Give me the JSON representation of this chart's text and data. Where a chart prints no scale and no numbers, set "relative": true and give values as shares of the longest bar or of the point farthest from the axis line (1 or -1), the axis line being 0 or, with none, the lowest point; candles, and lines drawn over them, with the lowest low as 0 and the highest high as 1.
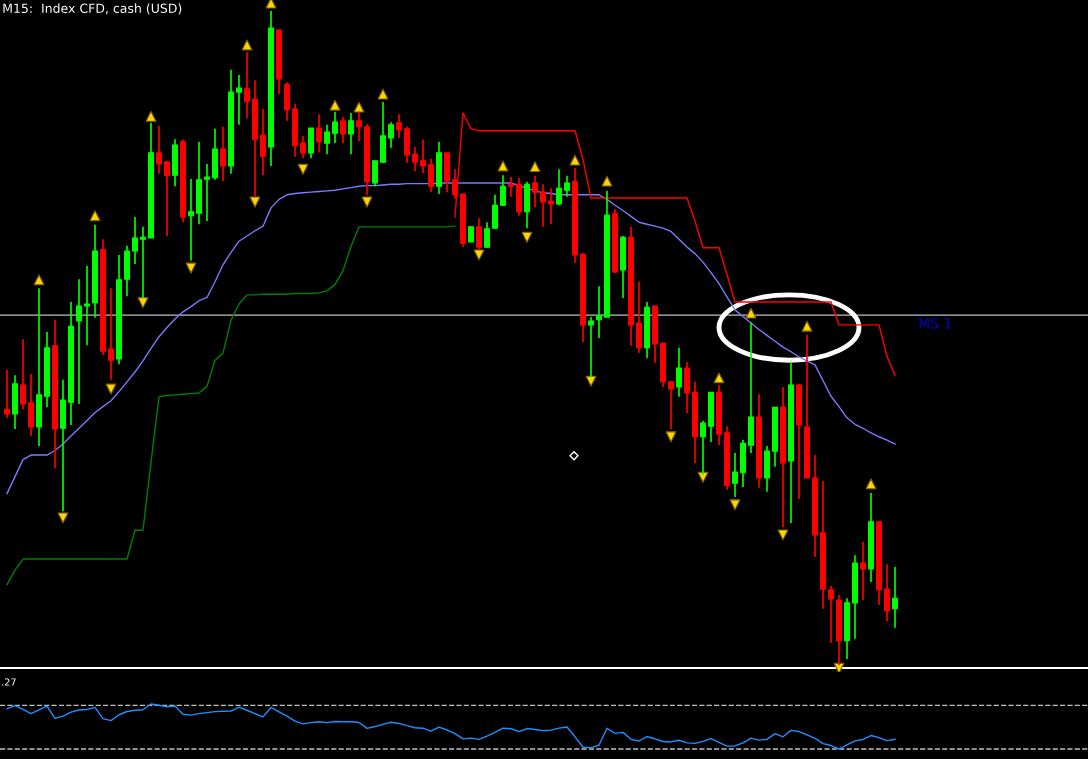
{
  "chart_data": [
    {
      "type": "candlestick",
      "title": "M15:  Index CFD, cash (USD)",
      "relative": true,
      "legend": false,
      "categories": [
        null,
        null,
        null,
        null,
        null,
        null,
        null,
        null,
        null,
        null,
        null,
        null,
        null,
        null,
        null,
        null,
        null,
        null,
        null,
        null,
        null,
        null,
        null,
        null,
        null,
        null,
        null,
        null,
        null,
        null,
        null,
        null,
        null,
        null,
        null,
        null,
        null,
        null,
        null,
        null,
        null,
        null,
        null,
        null,
        null,
        null,
        null,
        null,
        null,
        null,
        null,
        null,
        null,
        null,
        null,
        null,
        null,
        null,
        null,
        null,
        null,
        null,
        null,
        null,
        null,
        null,
        null,
        null,
        null,
        null,
        null,
        null,
        null,
        null,
        null,
        null,
        null,
        null,
        null,
        null,
        null,
        null,
        null,
        null,
        null,
        null,
        null,
        null,
        null,
        null,
        null,
        null,
        null,
        null,
        null,
        null,
        null,
        null,
        null,
        null,
        null,
        null,
        null,
        null,
        null,
        null,
        null,
        null,
        null,
        null,
        null,
        null
      ],
      "ohlc": [
        [
          0.391,
          0.451,
          0.378,
          0.384
        ],
        [
          0.384,
          0.443,
          0.361,
          0.43
        ],
        [
          0.428,
          0.498,
          0.391,
          0.399
        ],
        [
          0.401,
          0.445,
          0.35,
          0.364
        ],
        [
          0.364,
          0.576,
          0.335,
          0.413
        ],
        [
          0.411,
          0.509,
          0.394,
          0.485
        ],
        [
          0.488,
          0.528,
          0.301,
          0.361
        ],
        [
          0.362,
          0.436,
          0.235,
          0.405
        ],
        [
          0.402,
          0.555,
          0.367,
          0.518
        ],
        [
          0.526,
          0.59,
          0.399,
          0.549
        ],
        [
          0.549,
          0.61,
          0.489,
          0.552
        ],
        [
          0.554,
          0.673,
          0.531,
          0.633
        ],
        [
          0.635,
          0.651,
          0.474,
          0.48
        ],
        [
          0.483,
          0.576,
          0.436,
          0.466
        ],
        [
          0.468,
          0.627,
          0.46,
          0.589
        ],
        [
          0.59,
          0.641,
          0.564,
          0.633
        ],
        [
          0.633,
          0.685,
          0.613,
          0.653
        ],
        [
          0.651,
          0.67,
          0.561,
          0.654
        ],
        [
          0.653,
          0.829,
          0.653,
          0.783
        ],
        [
          0.783,
          0.824,
          0.751,
          0.766
        ],
        [
          0.769,
          0.771,
          0.656,
          0.748
        ],
        [
          0.749,
          0.804,
          0.732,
          0.795
        ],
        [
          0.8,
          0.803,
          0.677,
          0.685
        ],
        [
          0.687,
          0.743,
          0.618,
          0.693
        ],
        [
          0.691,
          0.8,
          0.674,
          0.742
        ],
        [
          0.743,
          0.766,
          0.679,
          0.746
        ],
        [
          0.745,
          0.82,
          0.742,
          0.789
        ],
        [
          0.789,
          0.823,
          0.74,
          0.763
        ],
        [
          0.763,
          0.91,
          0.751,
          0.876
        ],
        [
          0.876,
          0.902,
          0.826,
          0.882
        ],
        [
          0.881,
          0.937,
          0.836,
          0.862
        ],
        [
          0.865,
          0.894,
          0.717,
          0.804
        ],
        [
          0.81,
          0.85,
          0.749,
          0.778
        ],
        [
          0.792,
          1.0,
          0.763,
          0.974
        ],
        [
          0.971,
          0.971,
          0.873,
          0.896
        ],
        [
          0.888,
          0.891,
          0.832,
          0.849
        ],
        [
          0.85,
          0.858,
          0.777,
          0.794
        ],
        [
          0.798,
          0.809,
          0.775,
          0.783
        ],
        [
          0.783,
          0.821,
          0.775,
          0.821
        ],
        [
          0.821,
          0.842,
          0.784,
          0.8
        ],
        [
          0.798,
          0.826,
          0.781,
          0.815
        ],
        [
          0.813,
          0.846,
          0.798,
          0.83
        ],
        [
          0.832,
          0.838,
          0.798,
          0.812
        ],
        [
          0.812,
          0.844,
          0.781,
          0.832
        ],
        [
          0.832,
          0.846,
          0.801,
          0.823
        ],
        [
          0.823,
          0.827,
          0.719,
          0.739
        ],
        [
          0.737,
          0.771,
          0.732,
          0.771
        ],
        [
          0.769,
          0.861,
          0.768,
          0.809
        ],
        [
          0.806,
          0.83,
          0.791,
          0.826
        ],
        [
          0.829,
          0.842,
          0.806,
          0.818
        ],
        [
          0.82,
          0.823,
          0.768,
          0.78
        ],
        [
          0.781,
          0.792,
          0.755,
          0.769
        ],
        [
          0.771,
          0.803,
          0.752,
          0.763
        ],
        [
          0.765,
          0.774,
          0.723,
          0.732
        ],
        [
          0.732,
          0.8,
          0.72,
          0.783
        ],
        [
          0.783,
          0.783,
          0.723,
          0.74
        ],
        [
          0.742,
          0.758,
          0.713,
          0.719
        ],
        [
          0.72,
          0.72,
          0.639,
          0.645
        ],
        [
          0.647,
          0.67,
          0.647,
          0.67
        ],
        [
          0.67,
          0.683,
          0.635,
          0.639
        ],
        [
          0.639,
          0.677,
          0.638,
          0.667
        ],
        [
          0.668,
          0.719,
          0.667,
          0.703
        ],
        [
          0.703,
          0.749,
          0.702,
          0.732
        ],
        [
          0.735,
          0.746,
          0.716,
          0.732
        ],
        [
          0.735,
          0.745,
          0.687,
          0.693
        ],
        [
          0.693,
          0.739,
          0.668,
          0.735
        ],
        [
          0.737,
          0.748,
          0.7,
          0.723
        ],
        [
          0.723,
          0.735,
          0.67,
          0.708
        ],
        [
          0.709,
          0.729,
          0.674,
          0.705
        ],
        [
          0.705,
          0.758,
          0.703,
          0.729
        ],
        [
          0.726,
          0.748,
          0.716,
          0.737
        ],
        [
          0.739,
          0.76,
          0.615,
          0.627
        ],
        [
          0.628,
          0.63,
          0.494,
          0.52
        ],
        [
          0.52,
          0.532,
          0.44,
          0.526
        ],
        [
          0.528,
          0.579,
          0.5,
          0.534
        ],
        [
          0.532,
          0.725,
          0.532,
          0.688
        ],
        [
          0.69,
          0.697,
          0.599,
          0.601
        ],
        [
          0.604,
          0.656,
          0.561,
          0.654
        ],
        [
          0.654,
          0.67,
          0.488,
          0.52
        ],
        [
          0.523,
          0.586,
          0.477,
          0.485
        ],
        [
          0.485,
          0.555,
          0.469,
          0.547
        ],
        [
          0.549,
          0.549,
          0.462,
          0.491
        ],
        [
          0.492,
          0.492,
          0.425,
          0.433
        ],
        [
          0.433,
          0.433,
          0.361,
          0.422
        ],
        [
          0.425,
          0.485,
          0.41,
          0.454
        ],
        [
          0.454,
          0.463,
          0.385,
          0.416
        ],
        [
          0.417,
          0.433,
          0.309,
          0.349
        ],
        [
          0.349,
          0.373,
          0.291,
          0.37
        ],
        [
          0.365,
          0.417,
          0.341,
          0.417
        ],
        [
          0.417,
          0.428,
          0.336,
          0.353
        ],
        [
          0.355,
          0.365,
          0.268,
          0.275
        ],
        [
          0.278,
          0.324,
          0.257,
          0.295
        ],
        [
          0.294,
          0.344,
          0.272,
          0.339
        ],
        [
          0.336,
          0.524,
          0.324,
          0.379
        ],
        [
          0.379,
          0.414,
          0.271,
          0.286
        ],
        [
          0.286,
          0.335,
          0.265,
          0.327
        ],
        [
          0.327,
          0.394,
          0.303,
          0.394
        ],
        [
          0.394,
          0.425,
          0.211,
          0.309
        ],
        [
          0.312,
          0.463,
          0.217,
          0.428
        ],
        [
          0.428,
          0.43,
          0.254,
          0.367
        ],
        [
          0.364,
          0.505,
          0.286,
          0.286
        ],
        [
          0.286,
          0.321,
          0.165,
          0.199
        ],
        [
          0.202,
          0.281,
          0.086,
          0.116
        ],
        [
          0.115,
          0.121,
          0.034,
          0.101
        ],
        [
          0.099,
          0.107,
          0.0,
          0.037
        ],
        [
          0.037,
          0.102,
          0.009,
          0.095
        ],
        [
          0.095,
          0.168,
          0.04,
          0.156
        ],
        [
          0.156,
          0.188,
          0.099,
          0.147
        ],
        [
          0.147,
          0.263,
          0.127,
          0.219
        ],
        [
          0.219,
          0.22,
          0.092,
          0.115
        ],
        [
          0.116,
          0.154,
          0.067,
          0.083
        ],
        [
          0.086,
          0.15,
          0.057,
          0.102
        ]
      ],
      "colors": [
        "#ff0000",
        "#00ff00",
        "#ff0000",
        "#ff0000",
        "#00ff00",
        "#00ff00",
        "#ff0000",
        "#00ff00",
        "#00ff00",
        "#00ff00",
        "#00ff00",
        "#00ff00",
        "#ff0000",
        "#ff0000",
        "#00ff00",
        "#00ff00",
        "#00ff00",
        "#00ff00",
        "#00ff00",
        "#ff0000",
        "#ff0000",
        "#00ff00",
        "#ff0000",
        "#00ff00",
        "#00ff00",
        "#00ff00",
        "#00ff00",
        "#ff0000",
        "#00ff00",
        "#00ff00",
        "#ff0000",
        "#ff0000",
        "#ff0000",
        "#00ff00",
        "#ff0000",
        "#ff0000",
        "#ff0000",
        "#ff0000",
        "#00ff00",
        "#ff0000",
        "#00ff00",
        "#00ff00",
        "#ff0000",
        "#00ff00",
        "#ff0000",
        "#ff0000",
        "#00ff00",
        "#00ff00",
        "#00ff00",
        "#ff0000",
        "#ff0000",
        "#ff0000",
        "#ff0000",
        "#ff0000",
        "#00ff00",
        "#ff0000",
        "#ff0000",
        "#ff0000",
        "#00ff00",
        "#ff0000",
        "#00ff00",
        "#00ff00",
        "#00ff00",
        "#ff0000",
        "#ff0000",
        "#00ff00",
        "#ff0000",
        "#ff0000",
        "#ff0000",
        "#00ff00",
        "#00ff00",
        "#ff0000",
        "#ff0000",
        "#00ff00",
        "#00ff00",
        "#00ff00",
        "#ff0000",
        "#00ff00",
        "#ff0000",
        "#ff0000",
        "#00ff00",
        "#ff0000",
        "#ff0000",
        "#ff0000",
        "#00ff00",
        "#ff0000",
        "#ff0000",
        "#00ff00",
        "#00ff00",
        "#ff0000",
        "#ff0000",
        "#00ff00",
        "#00ff00",
        "#00ff00",
        "#ff0000",
        "#00ff00",
        "#00ff00",
        "#ff0000",
        "#00ff00",
        "#ff0000",
        "#ff0000",
        "#ff0000",
        "#ff0000",
        "#ff0000",
        "#ff0000",
        "#00ff00",
        "#00ff00",
        "#ff0000",
        "#00ff00",
        "#ff0000",
        "#ff0000",
        "#00ff00"
      ],
      "series": [
        {
          "type": "line",
          "color": "#7b7bff",
          "values": [
            0.262,
            0.288,
            0.314,
            0.321,
            0.321,
            0.321,
            0.328,
            0.338,
            0.35,
            0.362,
            0.374,
            0.386,
            0.395,
            0.404,
            0.418,
            0.433,
            0.448,
            0.465,
            0.484,
            0.502,
            0.516,
            0.529,
            0.54,
            0.548,
            0.557,
            0.562,
            0.586,
            0.612,
            0.631,
            0.648,
            0.656,
            0.664,
            0.671,
            0.699,
            0.712,
            0.719,
            0.721,
            0.722,
            0.723,
            0.724,
            0.725,
            0.726,
            0.728,
            0.73,
            0.732,
            0.733,
            0.733,
            0.734,
            0.735,
            0.735,
            0.736,
            0.736,
            0.736,
            0.736,
            0.737,
            0.737,
            0.737,
            0.737,
            0.737,
            0.737,
            0.737,
            0.737,
            0.737,
            0.737,
            0.733,
            0.729,
            0.725,
            0.722,
            0.721,
            0.719,
            0.719,
            0.719,
            0.719,
            0.719,
            0.719,
            0.712,
            0.703,
            0.695,
            0.686,
            0.677,
            0.674,
            0.671,
            0.668,
            0.663,
            0.651,
            0.639,
            0.629,
            0.616,
            0.6,
            0.583,
            0.563,
            0.543,
            0.533,
            0.523,
            0.513,
            0.504,
            0.495,
            0.486,
            0.479,
            0.471,
            0.465,
            0.459,
            0.435,
            0.411,
            0.395,
            0.378,
            0.368,
            0.362,
            0.355,
            0.349,
            0.344,
            0.338
          ]
        },
        {
          "type": "line",
          "color": "#ff0000",
          "values": [
            null,
            null,
            null,
            null,
            null,
            null,
            null,
            null,
            null,
            null,
            null,
            null,
            null,
            null,
            null,
            null,
            null,
            null,
            null,
            null,
            null,
            null,
            null,
            null,
            null,
            null,
            null,
            null,
            null,
            null,
            null,
            null,
            null,
            null,
            null,
            null,
            null,
            null,
            null,
            null,
            null,
            null,
            null,
            null,
            null,
            null,
            null,
            null,
            null,
            null,
            null,
            null,
            null,
            null,
            null,
            null,
            0.685,
            0.844,
            0.82,
            0.817,
            0.817,
            0.817,
            0.817,
            0.817,
            0.817,
            0.817,
            0.817,
            0.817,
            0.817,
            0.817,
            0.817,
            0.817,
            0.773,
            0.714,
            0.714,
            0.714,
            0.714,
            0.714,
            0.714,
            0.714,
            0.714,
            0.714,
            0.714,
            0.714,
            0.714,
            0.714,
            0.679,
            0.638,
            0.638,
            0.638,
            0.597,
            0.555,
            0.555,
            0.555,
            0.555,
            0.555,
            0.555,
            0.555,
            0.555,
            0.555,
            0.555,
            0.555,
            0.555,
            0.555,
            0.52,
            0.52,
            0.52,
            0.52,
            0.52,
            0.52,
            0.472,
            0.443
          ]
        },
        {
          "type": "line",
          "color": "#008000",
          "values": [
            0.123,
            0.145,
            0.162,
            0.162,
            0.162,
            0.162,
            0.162,
            0.162,
            0.162,
            0.162,
            0.162,
            0.162,
            0.162,
            0.162,
            0.162,
            0.162,
            0.206,
            0.206,
            0.31,
            0.41,
            0.412,
            0.413,
            0.414,
            0.415,
            0.416,
            0.426,
            0.466,
            0.477,
            0.527,
            0.552,
            0.566,
            0.566,
            0.567,
            0.567,
            0.567,
            0.567,
            0.568,
            0.568,
            0.568,
            0.569,
            0.572,
            0.582,
            0.603,
            0.64,
            0.67,
            0.67,
            0.67,
            0.67,
            0.67,
            0.67,
            0.67,
            0.67,
            0.67,
            0.67,
            0.67,
            0.67,
            0.671,
            null,
            null,
            null,
            null,
            null,
            null,
            null,
            null,
            null,
            null,
            null,
            null,
            null,
            null,
            null,
            null,
            null,
            null,
            null,
            null,
            null,
            null,
            null,
            null,
            null,
            null,
            null,
            null,
            null,
            null,
            null,
            null,
            null,
            null,
            null,
            null,
            null,
            null,
            null,
            null,
            null,
            null,
            null,
            null,
            null,
            null,
            null,
            null,
            null,
            null,
            null,
            null,
            null,
            null,
            null
          ]
        },
        {
          "type": "scatter",
          "marker": "triangle",
          "color": "#ffd700",
          "values": [
            null,
            null,
            null,
            null,
            0.589,
            null,
            null,
            null,
            null,
            null,
            null,
            0.687,
            null,
            null,
            null,
            null,
            null,
            null,
            0.839,
            null,
            null,
            null,
            null,
            null,
            null,
            null,
            null,
            null,
            null,
            null,
            0.948,
            null,
            null,
            1.012,
            null,
            null,
            null,
            null,
            null,
            null,
            null,
            0.856,
            null,
            null,
            0.853,
            null,
            null,
            0.873,
            null,
            null,
            null,
            null,
            null,
            null,
            null,
            null,
            null,
            null,
            null,
            null,
            null,
            null,
            0.763,
            null,
            null,
            null,
            0.762,
            null,
            null,
            null,
            null,
            0.772,
            null,
            null,
            null,
            0.74,
            null,
            null,
            null,
            null,
            null,
            null,
            null,
            null,
            null,
            null,
            null,
            null,
            null,
            0.439,
            null,
            null,
            null,
            0.538,
            null,
            null,
            null,
            null,
            null,
            null,
            0.518,
            null,
            null,
            null,
            null,
            null,
            null,
            null,
            0.277,
            null,
            null,
            null
          ]
        },
        {
          "type": "scatter",
          "marker": "triangle",
          "color": "#ffd700",
          "values": [
            null,
            null,
            null,
            null,
            null,
            null,
            null,
            0.225,
            null,
            null,
            null,
            null,
            null,
            0.422,
            null,
            null,
            null,
            0.554,
            null,
            null,
            null,
            null,
            null,
            0.607,
            null,
            null,
            null,
            null,
            null,
            null,
            null,
            0.708,
            null,
            null,
            null,
            null,
            null,
            0.758,
            null,
            null,
            null,
            null,
            null,
            null,
            null,
            0.708,
            null,
            null,
            null,
            null,
            null,
            null,
            null,
            null,
            null,
            null,
            null,
            null,
            null,
            0.627,
            null,
            null,
            null,
            null,
            null,
            0.654,
            null,
            null,
            null,
            null,
            null,
            null,
            null,
            0.434,
            null,
            null,
            null,
            null,
            null,
            null,
            null,
            null,
            null,
            0.349,
            null,
            null,
            null,
            0.287,
            null,
            null,
            null,
            0.245,
            null,
            null,
            null,
            null,
            null,
            0.199,
            null,
            null,
            null,
            null,
            null,
            null,
            -0.005,
            null,
            null,
            null,
            null,
            null,
            null,
            null
          ]
        }
      ],
      "ref_lines": [
        {
          "axis": "y",
          "value": 0.535,
          "label": "MS 1",
          "color": "#c0c0c0"
        }
      ]
    },
    {
      "type": "line",
      "relative": true,
      "legend": false,
      "annotations": [
        ".27"
      ],
      "categories": [
        null,
        null,
        null,
        null,
        null,
        null,
        null,
        null,
        null,
        null,
        null,
        null,
        null,
        null,
        null,
        null,
        null,
        null,
        null,
        null,
        null,
        null,
        null,
        null,
        null,
        null,
        null,
        null,
        null,
        null,
        null,
        null,
        null,
        null,
        null,
        null,
        null,
        null,
        null,
        null,
        null,
        null,
        null,
        null,
        null,
        null,
        null,
        null,
        null,
        null,
        null,
        null,
        null,
        null,
        null,
        null,
        null,
        null,
        null,
        null,
        null,
        null,
        null,
        null,
        null,
        null,
        null,
        null,
        null,
        null,
        null,
        null,
        null,
        null,
        null,
        null,
        null,
        null,
        null,
        null,
        null,
        null,
        null,
        null,
        null,
        null,
        null,
        null,
        null,
        null,
        null,
        null,
        null,
        null,
        null,
        null,
        null,
        null,
        null,
        null,
        null,
        null,
        null,
        null,
        null,
        null,
        null,
        null,
        null,
        null,
        null,
        null
      ],
      "series": [
        {
          "color": "#1e90ff",
          "values": [
            0.892,
            0.966,
            0.878,
            0.788,
            0.872,
            0.951,
            0.679,
            0.731,
            0.818,
            0.867,
            0.879,
            0.925,
            0.675,
            0.631,
            0.761,
            0.833,
            0.862,
            0.873,
            1.0,
            0.971,
            0.939,
            0.954,
            0.772,
            0.754,
            0.787,
            0.808,
            0.83,
            0.839,
            0.841,
            0.932,
            0.861,
            0.786,
            0.713,
            0.923,
            0.825,
            0.73,
            0.618,
            0.559,
            0.587,
            0.606,
            0.587,
            0.61,
            0.606,
            0.606,
            0.589,
            0.459,
            0.499,
            0.549,
            0.595,
            0.568,
            0.518,
            0.473,
            0.462,
            0.396,
            0.486,
            0.422,
            0.34,
            0.225,
            0.241,
            0.215,
            0.287,
            0.371,
            0.462,
            0.45,
            0.386,
            0.455,
            0.432,
            0.407,
            0.419,
            0.465,
            0.489,
            0.271,
            0.038,
            0.031,
            0.084,
            0.462,
            0.348,
            0.369,
            0.215,
            0.178,
            0.273,
            0.227,
            0.167,
            0.157,
            0.195,
            0.136,
            0.124,
            0.169,
            0.231,
            0.148,
            0.065,
            0.068,
            0.134,
            0.24,
            0.196,
            0.214,
            0.342,
            0.271,
            0.413,
            0.388,
            0.315,
            0.238,
            0.118,
            0.077,
            0.0,
            0.092,
            0.181,
            0.212,
            0.299,
            0.254,
            0.185,
            0.215
          ]
        }
      ],
      "ref_lines": [
        {
          "axis": "y",
          "value": 0.969,
          "color": "#c0c0c0",
          "line_style": "dashed"
        },
        {
          "axis": "y",
          "value": 0.0,
          "color": "#c0c0c0",
          "line_style": "dashed"
        }
      ]
    }
  ]
}
